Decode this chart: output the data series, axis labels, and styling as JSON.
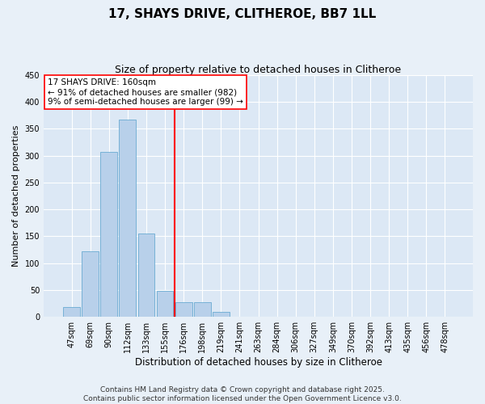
{
  "title": "17, SHAYS DRIVE, CLITHEROE, BB7 1LL",
  "subtitle": "Size of property relative to detached houses in Clitheroe",
  "xlabel": "Distribution of detached houses by size in Clitheroe",
  "ylabel": "Number of detached properties",
  "bar_labels": [
    "47sqm",
    "69sqm",
    "90sqm",
    "112sqm",
    "133sqm",
    "155sqm",
    "176sqm",
    "198sqm",
    "219sqm",
    "241sqm",
    "263sqm",
    "284sqm",
    "306sqm",
    "327sqm",
    "349sqm",
    "370sqm",
    "392sqm",
    "413sqm",
    "435sqm",
    "456sqm",
    "478sqm"
  ],
  "bar_values": [
    18,
    122,
    307,
    368,
    155,
    48,
    27,
    27,
    9,
    1,
    0,
    1,
    0,
    0,
    0,
    1,
    0,
    0,
    1,
    0,
    1
  ],
  "bar_color": "#b8d0ea",
  "bar_edge_color": "#6aabd2",
  "vline_color": "red",
  "vline_pos": 5.5,
  "annotation_text": "17 SHAYS DRIVE: 160sqm\n← 91% of detached houses are smaller (982)\n9% of semi-detached houses are larger (99) →",
  "annotation_box_color": "red",
  "ylim": [
    0,
    450
  ],
  "yticks": [
    0,
    50,
    100,
    150,
    200,
    250,
    300,
    350,
    400,
    450
  ],
  "bg_color": "#e8f0f8",
  "plot_bg_color": "#dce8f5",
  "footer_text": "Contains HM Land Registry data © Crown copyright and database right 2025.\nContains public sector information licensed under the Open Government Licence v3.0.",
  "title_fontsize": 11,
  "subtitle_fontsize": 9,
  "xlabel_fontsize": 8.5,
  "ylabel_fontsize": 8,
  "tick_fontsize": 7,
  "annotation_fontsize": 7.5,
  "footer_fontsize": 6.5
}
